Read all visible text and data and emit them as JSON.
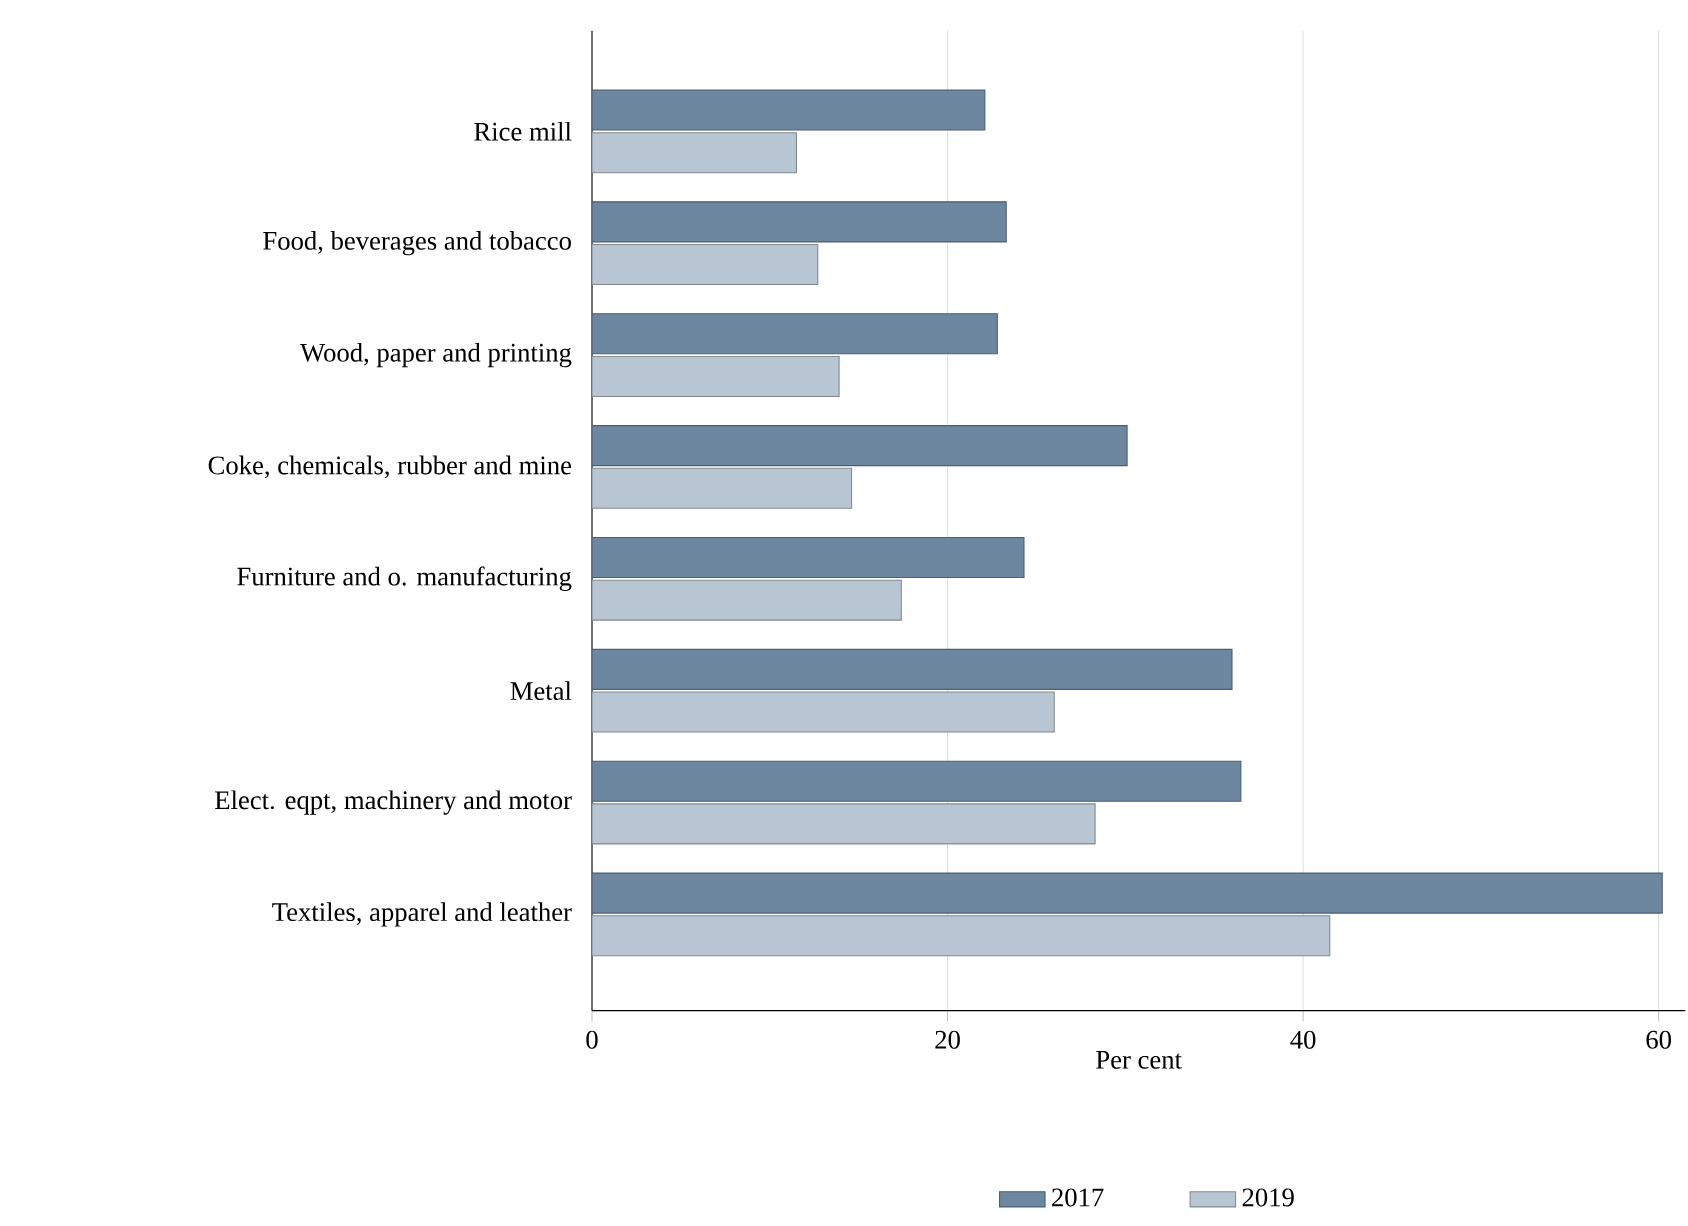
{
  "chart_data": {
    "type": "bar",
    "orientation": "horizontal",
    "xlabel": "Per cent",
    "categories": [
      "Rice mill",
      "Food, beverages and tobacco",
      "Wood, paper and printing",
      "Coke, chemicals, rubber and mine",
      "Furniture and o. manufacturing",
      "Metal",
      "Elect. eqpt, machinery and motor",
      "Textiles, apparel and leather"
    ],
    "series": [
      {
        "name": "2017",
        "color": "#6d87a1",
        "values": [
          22.1,
          23.3,
          22.8,
          30.1,
          24.3,
          36.0,
          36.5,
          60.2
        ]
      },
      {
        "name": "2019",
        "color": "#b8c5d3",
        "values": [
          11.5,
          12.7,
          13.9,
          14.6,
          17.4,
          26.0,
          28.3,
          41.5
        ]
      }
    ],
    "xlim": [
      0,
      61.5
    ],
    "xticks": [
      0,
      20,
      40,
      60
    ],
    "grid": "x",
    "legend": "bottom"
  }
}
